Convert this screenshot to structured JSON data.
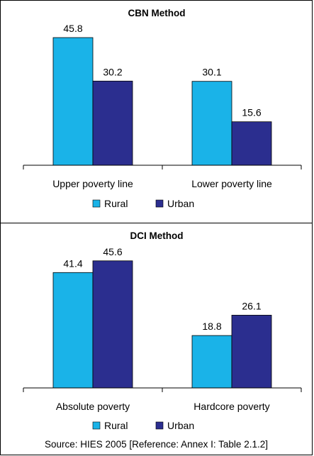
{
  "chart_data": [
    {
      "type": "bar",
      "title": "CBN Method",
      "categories": [
        "Upper poverty line",
        "Lower poverty line"
      ],
      "series": [
        {
          "name": "Rural",
          "values": [
            45.8,
            30.1
          ]
        },
        {
          "name": "Urban",
          "values": [
            30.2,
            15.6
          ]
        }
      ],
      "ylim": [
        0,
        50
      ],
      "grid": false,
      "legend_position": "bottom"
    },
    {
      "type": "bar",
      "title": "DCI Method",
      "categories": [
        "Absolute poverty",
        "Hardcore poverty"
      ],
      "series": [
        {
          "name": "Rural",
          "values": [
            41.4,
            18.8
          ]
        },
        {
          "name": "Urban",
          "values": [
            45.6,
            26.1
          ]
        }
      ],
      "ylim": [
        0,
        50
      ],
      "grid": false,
      "legend_position": "bottom"
    }
  ],
  "colors": {
    "Rural": "#1ab3e8",
    "Urban": "#2b2e8f"
  },
  "source": "Source: HIES 2005 [Reference: Annex I: Table 2.1.2]"
}
